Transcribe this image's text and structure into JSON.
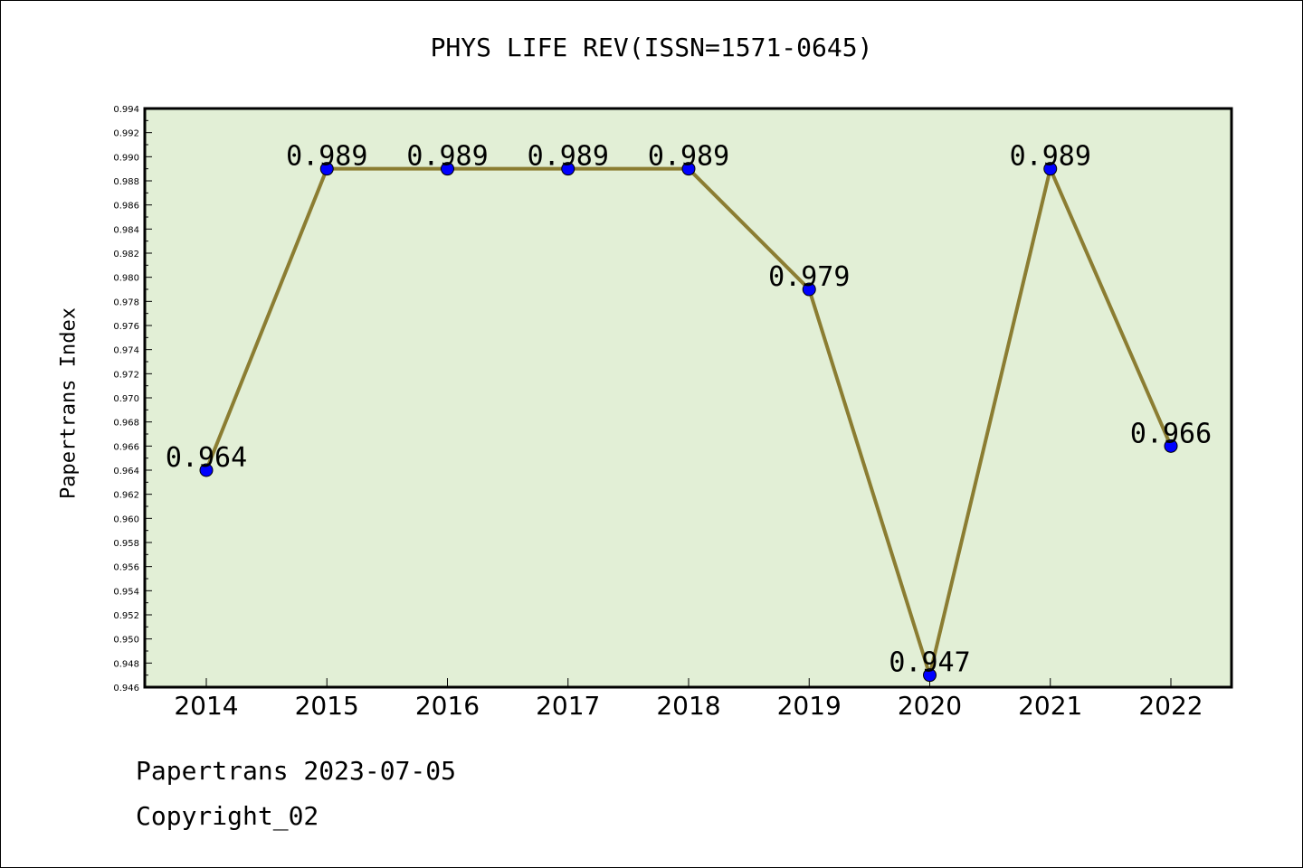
{
  "title": "PHYS LIFE REV(ISSN=1571-0645)",
  "footer": {
    "date_line": "Papertrans 2023-07-05",
    "copyright": "Copyright_02"
  },
  "colors": {
    "plot_background": "#e2efd6",
    "line": "#8b7d32",
    "marker": "#0000ff"
  },
  "chart_data": {
    "type": "line",
    "title": "PHYS LIFE REV(ISSN=1571-0645)",
    "xlabel": "",
    "ylabel": "Papertrans Index",
    "categories": [
      "2014",
      "2015",
      "2016",
      "2017",
      "2018",
      "2019",
      "2020",
      "2021",
      "2022"
    ],
    "values": [
      0.964,
      0.989,
      0.989,
      0.989,
      0.989,
      0.979,
      0.947,
      0.989,
      0.966
    ],
    "data_labels": [
      "0.964",
      "0.989",
      "0.989",
      "0.989",
      "0.989",
      "0.979",
      "0.947",
      "0.989",
      "0.966"
    ],
    "ylim": [
      0.946,
      0.994
    ],
    "yticks": [
      "0.946",
      "0.948",
      "0.950",
      "0.952",
      "0.954",
      "0.956",
      "0.958",
      "0.960",
      "0.962",
      "0.964",
      "0.966",
      "0.968",
      "0.970",
      "0.972",
      "0.974",
      "0.976",
      "0.978",
      "0.980",
      "0.982",
      "0.984",
      "0.986",
      "0.988",
      "0.990",
      "0.992",
      "0.994"
    ],
    "grid": false,
    "legend": "none"
  }
}
